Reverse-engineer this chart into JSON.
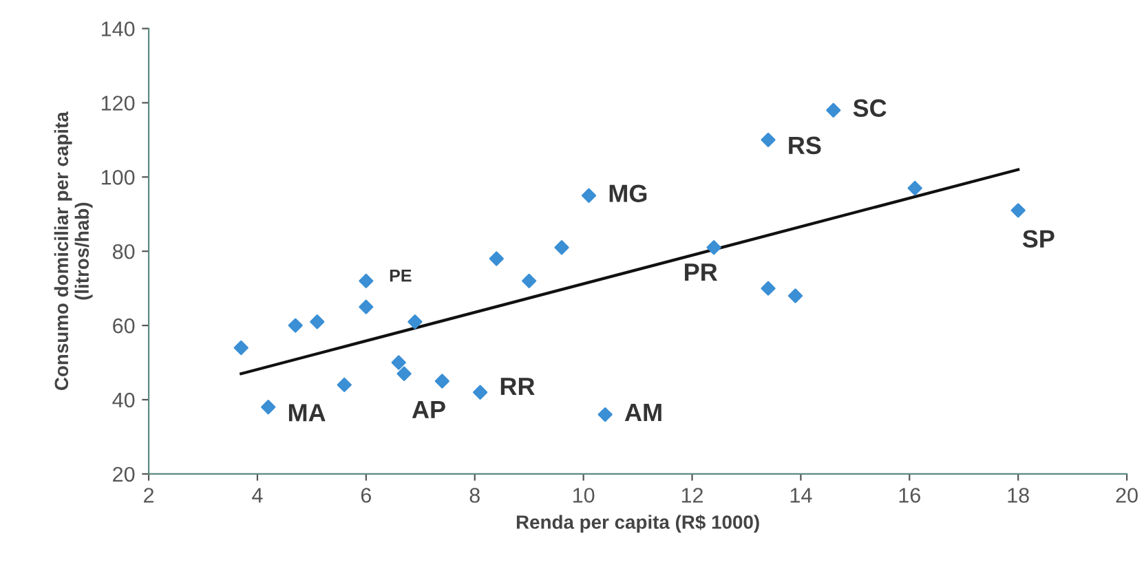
{
  "chart_data": {
    "type": "scatter",
    "xlabel": "Renda per capita (R$ 1000)",
    "ylabel": "Consumo domiciliar per capita\n(litros/hab)",
    "xlim": [
      2,
      20
    ],
    "xticks": [
      2,
      4,
      6,
      8,
      10,
      12,
      14,
      16,
      18,
      20
    ],
    "ylim": [
      20,
      140
    ],
    "yticks": [
      20,
      40,
      60,
      80,
      100,
      120,
      140
    ],
    "grid": false,
    "legend": false,
    "series": [
      {
        "marker": "diamond",
        "color": "#3b8fd4",
        "x": [
          3.7,
          4.2,
          4.7,
          5.1,
          5.6,
          6.0,
          6.0,
          6.6,
          6.7,
          6.9,
          7.4,
          8.1,
          8.4,
          9.0,
          9.6,
          10.1,
          10.4,
          12.4,
          13.4,
          14.6,
          13.4,
          13.9,
          16.1,
          18.0
        ],
        "values": [
          54,
          38,
          60,
          61,
          44,
          72,
          65,
          50,
          47,
          61,
          45,
          42,
          78,
          72,
          81,
          95,
          36,
          81,
          110,
          118,
          70,
          68,
          97,
          91
        ]
      },
      {
        "type": "line",
        "color": "#111111",
        "line_style": "solid",
        "x": [
          3.7,
          18.0
        ],
        "values": [
          47,
          102
        ]
      }
    ],
    "annotations": [
      {
        "text": "MA",
        "x": 4.2,
        "y": 38
      },
      {
        "text": "PE",
        "x": 6.0,
        "y": 72
      },
      {
        "text": "AP",
        "x": 7.4,
        "y": 45
      },
      {
        "text": "RR",
        "x": 8.1,
        "y": 42
      },
      {
        "text": "MG",
        "x": 10.1,
        "y": 95
      },
      {
        "text": "AM",
        "x": 10.4,
        "y": 36
      },
      {
        "text": "PR",
        "x": 12.4,
        "y": 81
      },
      {
        "text": "RS",
        "x": 13.4,
        "y": 110
      },
      {
        "text": "SC",
        "x": 14.6,
        "y": 118
      },
      {
        "text": "SP",
        "x": 18.0,
        "y": 91
      }
    ]
  }
}
